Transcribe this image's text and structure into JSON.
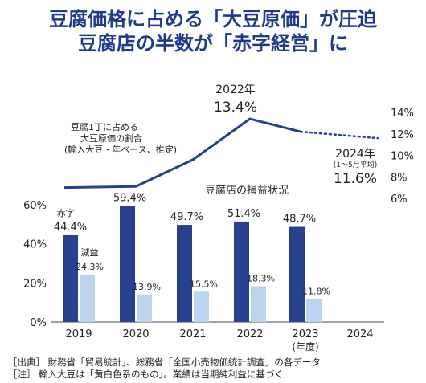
{
  "title_line1": "豆腐価格に占める「大豆原価」が圧迫",
  "title_line2": "豆腐店の半数が「赤字経営」に",
  "footnotes": [
    "［出典］ 財務省「貿易統計」、総務省「全国小売物価統計調査」の各データ",
    "［注］ 輸入大豆は「黄白色系のもの」。業績は当期純利益に基づく"
  ],
  "chart_data": {
    "type": "bar",
    "categories": [
      "2019",
      "2020",
      "2021",
      "2022",
      "2023",
      "2024"
    ],
    "x_unit_label": "(年度)",
    "bar_title": "豆腐店の損益状況",
    "series": [
      {
        "name": "赤字",
        "values": [
          44.4,
          59.4,
          49.7,
          51.4,
          48.7,
          null
        ],
        "labels": [
          "44.4%",
          "59.4%",
          "49.7%",
          "51.4%",
          "48.7%",
          ""
        ],
        "color": "#27418f"
      },
      {
        "name": "減益",
        "values": [
          24.3,
          13.9,
          15.5,
          18.3,
          11.8,
          null
        ],
        "labels": [
          "24.3%",
          "13.9%",
          "15.5%",
          "18.3%",
          "11.8%",
          ""
        ],
        "color": "#bcd5ee"
      }
    ],
    "ylim": [
      0,
      60
    ],
    "y_ticks": [
      "0%",
      "20%",
      "40%",
      "60%"
    ],
    "line": {
      "label_lines": [
        "豆腐1丁に占める",
        "大豆原価の割合",
        "(輸入大豆・年ベース、推定)"
      ],
      "values": [
        7.0,
        7.1,
        9.6,
        13.4,
        12.2,
        11.6
      ],
      "color": "#27418f",
      "dotted_from_index": 4,
      "ylim": [
        6,
        14
      ],
      "y_ticks": [
        "6%",
        "8%",
        "10%",
        "12%",
        "14%"
      ],
      "peak_annotation": {
        "year": "2022年",
        "value": "13.4%"
      },
      "end_annotation": {
        "year": "2024年",
        "note": "(1～5月平均)",
        "value": "11.6%"
      }
    }
  }
}
